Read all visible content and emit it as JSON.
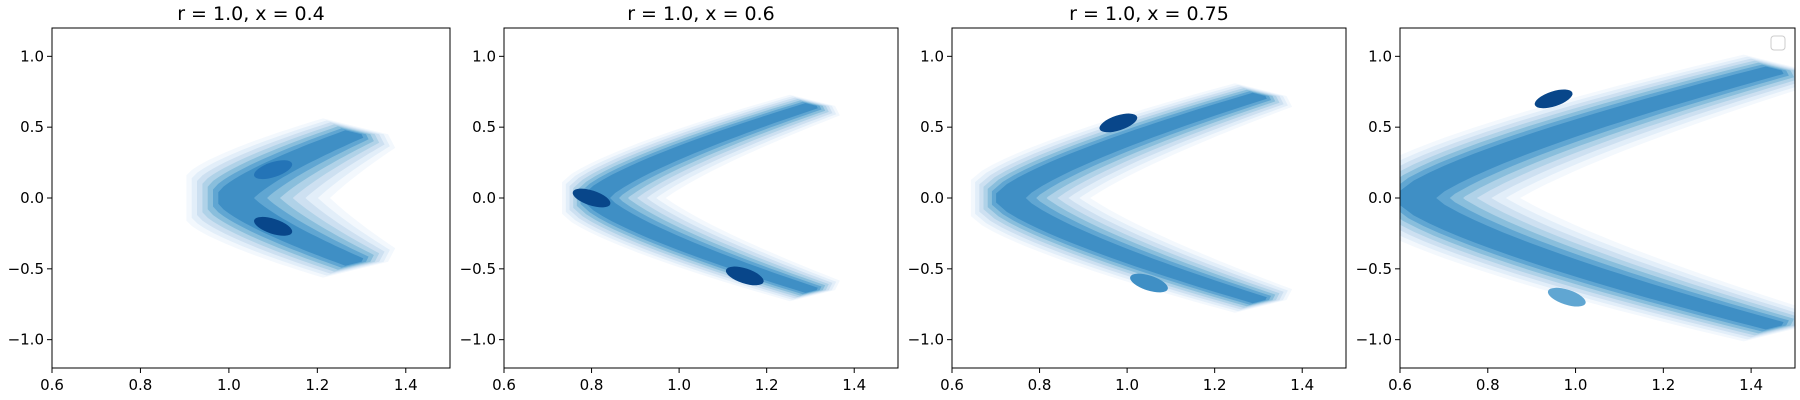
{
  "chart_data": [
    {
      "type": "contour",
      "title": "r = 1.0, x = 0.4",
      "xlim": [
        0.6,
        1.5
      ],
      "ylim": [
        -1.2,
        1.2
      ],
      "xticks": [
        "0.6",
        "0.8",
        "1.0",
        "1.2",
        "1.4"
      ],
      "yticks": [
        "1.0",
        "0.5",
        "0.0",
        "−0.5",
        "−1.0"
      ],
      "legend": "none",
      "density_description_points": {
        "upper_arm": [
          [
            1.05,
            0.15
          ],
          [
            1.12,
            0.28
          ],
          [
            1.2,
            0.38
          ]
        ],
        "lower_arm": [
          [
            1.05,
            -0.15
          ],
          [
            1.12,
            -0.25
          ],
          [
            1.2,
            -0.38
          ]
        ],
        "vertex": [
          1.0,
          0.0
        ]
      },
      "peak_regions": [
        {
          "x": 1.1,
          "y": 0.2,
          "level": 0.8
        },
        {
          "x": 1.1,
          "y": -0.2,
          "level": 1.0
        }
      ]
    },
    {
      "type": "contour",
      "title": "r = 1.0, x = 0.6",
      "xlim": [
        0.6,
        1.5
      ],
      "ylim": [
        -1.2,
        1.2
      ],
      "xticks": [
        "0.6",
        "0.8",
        "1.0",
        "1.2",
        "1.4"
      ],
      "yticks": [
        "1.0",
        "0.5",
        "0.0",
        "−0.5",
        "−1.0"
      ],
      "legend": "none",
      "density_description_points": {
        "upper_arm": [
          [
            0.85,
            0.2
          ],
          [
            1.0,
            0.4
          ],
          [
            1.2,
            0.55
          ],
          [
            1.28,
            0.62
          ]
        ],
        "lower_arm": [
          [
            0.85,
            -0.2
          ],
          [
            1.0,
            -0.4
          ],
          [
            1.15,
            -0.55
          ],
          [
            1.22,
            -0.62
          ]
        ],
        "vertex": [
          0.8,
          0.0
        ]
      },
      "peak_regions": [
        {
          "x": 0.8,
          "y": 0.0,
          "level": 1.0
        },
        {
          "x": 1.15,
          "y": -0.55,
          "level": 1.0
        }
      ]
    },
    {
      "type": "contour",
      "title": "r = 1.0, x = 0.75",
      "xlim": [
        0.6,
        1.5
      ],
      "ylim": [
        -1.2,
        1.2
      ],
      "xticks": [
        "0.6",
        "0.8",
        "1.0",
        "1.2",
        "1.4"
      ],
      "yticks": [
        "1.0",
        "0.5",
        "0.0",
        "−0.5",
        "−1.0"
      ],
      "legend": "none",
      "density_description_points": {
        "upper_arm": [
          [
            0.8,
            0.3
          ],
          [
            0.95,
            0.5
          ],
          [
            1.1,
            0.62
          ],
          [
            1.25,
            0.7
          ]
        ],
        "lower_arm": [
          [
            0.8,
            -0.3
          ],
          [
            0.95,
            -0.5
          ],
          [
            1.1,
            -0.62
          ],
          [
            1.25,
            -0.72
          ]
        ],
        "vertex": [
          0.72,
          0.0
        ]
      },
      "peak_regions": [
        {
          "x": 0.98,
          "y": 0.53,
          "level": 1.0
        },
        {
          "x": 1.05,
          "y": -0.6,
          "level": 0.7
        }
      ]
    },
    {
      "type": "contour",
      "title": "",
      "xlim": [
        0.6,
        1.5
      ],
      "ylim": [
        -1.2,
        1.2
      ],
      "xticks": [
        "0.6",
        "0.8",
        "1.0",
        "1.2",
        "1.4"
      ],
      "yticks": [
        "1.0",
        "0.5",
        "0.0",
        "−0.5",
        "−1.0"
      ],
      "legend": "top-right (empty)",
      "density_description_points": {
        "upper_arm": [
          [
            0.7,
            0.3
          ],
          [
            0.85,
            0.62
          ],
          [
            1.0,
            0.72
          ],
          [
            1.2,
            0.8
          ],
          [
            1.35,
            0.85
          ]
        ],
        "lower_arm": [
          [
            0.7,
            -0.45
          ],
          [
            0.85,
            -0.6
          ],
          [
            1.0,
            -0.72
          ],
          [
            1.2,
            -0.82
          ],
          [
            1.4,
            -0.95
          ]
        ],
        "vertex": [
          0.62,
          0.0
        ]
      },
      "peak_regions": [
        {
          "x": 0.95,
          "y": 0.7,
          "level": 1.0
        },
        {
          "x": 0.98,
          "y": -0.7,
          "level": 0.55
        }
      ]
    }
  ],
  "colors": {
    "levels": [
      "#f3f8fd",
      "#e2eef9",
      "#cde0f1",
      "#b0d2e8",
      "#89bedc",
      "#60a6d2",
      "#3f8fc5",
      "#2474b7",
      "#0e59a2",
      "#08468a"
    ]
  }
}
